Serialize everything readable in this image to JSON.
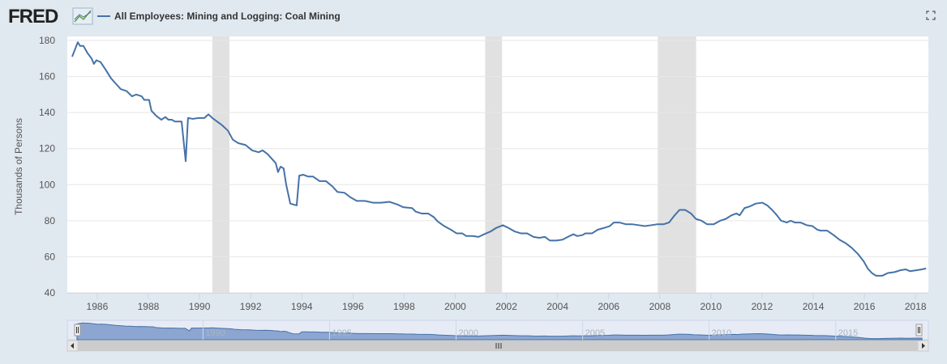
{
  "chart_data": {
    "type": "line",
    "logo": "FRED",
    "ylabel": "Thousands of Persons",
    "series": [
      {
        "name": "All Employees: Mining and Logging: Coal Mining",
        "color": "#4572a7",
        "values": [
          171,
          179,
          177,
          177,
          173,
          170,
          167,
          169,
          168,
          164,
          159,
          156,
          153,
          152,
          149,
          150,
          149,
          147,
          147,
          141,
          138,
          136,
          137.5,
          136,
          136,
          135,
          135,
          113,
          137,
          136.5,
          137,
          137,
          139,
          137,
          135,
          133,
          130,
          125,
          123,
          122,
          119,
          118,
          119,
          117,
          114,
          112,
          107,
          110,
          109,
          100,
          89.5,
          88.5,
          105,
          105.5,
          104.5,
          104.5,
          102,
          102,
          99,
          96,
          95.5,
          93,
          91,
          91,
          90,
          90,
          90.5,
          89,
          87.5,
          87,
          85,
          84,
          84,
          82,
          79.5,
          77,
          75,
          73,
          73,
          71.5,
          71.5,
          71,
          72.5,
          74,
          76,
          77.5,
          76,
          74,
          73,
          73,
          71,
          70.5,
          71,
          69,
          69,
          69.5,
          71,
          72.5,
          71.5,
          72,
          73,
          73,
          75,
          76,
          77,
          79,
          79,
          78,
          78,
          77.5,
          77,
          77.5,
          78,
          78,
          79,
          83,
          86,
          86,
          84,
          81,
          80,
          78,
          78,
          80,
          81,
          83,
          84,
          83,
          87,
          88,
          89.5,
          90,
          88.5,
          86,
          83,
          80,
          79,
          80,
          79,
          79,
          77.5,
          77,
          75,
          74.5,
          74.5,
          72,
          69.5,
          67.5,
          65,
          61.5,
          57.5,
          53.5,
          51,
          49.5,
          49.5,
          51,
          51.5,
          52.5,
          53,
          52,
          52.5,
          53,
          53.5
        ]
      }
    ],
    "x": [
      1985.02,
      1985.24,
      1985.33,
      1985.46,
      1985.62,
      1985.78,
      1985.87,
      1985.97,
      1986.13,
      1986.32,
      1986.54,
      1986.73,
      1986.92,
      1987.14,
      1987.36,
      1987.52,
      1987.74,
      1987.84,
      1988.03,
      1988.12,
      1988.32,
      1988.51,
      1988.66,
      1988.79,
      1988.92,
      1989.04,
      1989.3,
      1989.46,
      1989.55,
      1989.74,
      1989.96,
      1990.19,
      1990.35,
      1990.5,
      1990.69,
      1990.88,
      1991.11,
      1991.3,
      1991.52,
      1991.8,
      1992.06,
      1992.31,
      1992.47,
      1992.66,
      1992.85,
      1992.98,
      1993.07,
      1993.17,
      1993.29,
      1993.39,
      1993.55,
      1993.8,
      1993.9,
      1994.06,
      1994.25,
      1994.44,
      1994.69,
      1994.94,
      1995.2,
      1995.39,
      1995.67,
      1995.9,
      1996.15,
      1996.47,
      1996.78,
      1997.1,
      1997.42,
      1997.74,
      1997.96,
      1998.31,
      1998.46,
      1998.69,
      1998.94,
      1999.16,
      1999.32,
      1999.57,
      1999.83,
      2000.05,
      2000.27,
      2000.43,
      2000.68,
      2000.91,
      2001.13,
      2001.38,
      2001.6,
      2001.86,
      2002.08,
      2002.33,
      2002.56,
      2002.81,
      2003.06,
      2003.28,
      2003.51,
      2003.7,
      2003.95,
      2004.2,
      2004.4,
      2004.62,
      2004.77,
      2004.97,
      2005.09,
      2005.35,
      2005.57,
      2005.82,
      2006.04,
      2006.2,
      2006.42,
      2006.68,
      2006.93,
      2007.19,
      2007.41,
      2007.66,
      2007.88,
      2008.14,
      2008.36,
      2008.58,
      2008.77,
      2008.99,
      2009.22,
      2009.41,
      2009.63,
      2009.85,
      2010.1,
      2010.36,
      2010.58,
      2010.8,
      2010.99,
      2011.12,
      2011.31,
      2011.53,
      2011.75,
      2012.01,
      2012.2,
      2012.39,
      2012.58,
      2012.74,
      2012.96,
      2013.12,
      2013.28,
      2013.5,
      2013.75,
      2013.97,
      2014.16,
      2014.29,
      2014.54,
      2014.8,
      2015.02,
      2015.27,
      2015.5,
      2015.75,
      2015.97,
      2016.13,
      2016.29,
      2016.45,
      2016.7,
      2016.92,
      2017.18,
      2017.4,
      2017.62,
      2017.78,
      2018.03,
      2018.25,
      2018.41
    ],
    "recessions": [
      [
        1990.5,
        1991.17
      ],
      [
        2001.17,
        2001.83
      ],
      [
        2007.92,
        2009.42
      ]
    ],
    "xlim": [
      1984.83,
      2018.5
    ],
    "xticks": [
      1986,
      1988,
      1990,
      1992,
      1994,
      1996,
      1998,
      2000,
      2002,
      2004,
      2006,
      2008,
      2010,
      2012,
      2014,
      2016,
      2018
    ],
    "ylim": [
      40,
      180
    ],
    "yticks": [
      40,
      60,
      80,
      100,
      120,
      140,
      160,
      180
    ],
    "grid": true,
    "navigator_xticks": [
      1990,
      1995,
      2000,
      2005,
      2010,
      2015
    ]
  }
}
